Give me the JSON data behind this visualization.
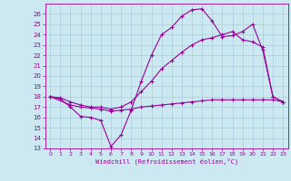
{
  "xlabel": "Windchill (Refroidissement éolien,°C)",
  "background_color": "#cce8f0",
  "grid_color": "#aaccdd",
  "line_color": "#990099",
  "xlim": [
    -0.5,
    23.5
  ],
  "ylim": [
    13,
    27
  ],
  "xticks": [
    0,
    1,
    2,
    3,
    4,
    5,
    6,
    7,
    8,
    9,
    10,
    11,
    12,
    13,
    14,
    15,
    16,
    17,
    18,
    19,
    20,
    21,
    22,
    23
  ],
  "yticks": [
    13,
    14,
    15,
    16,
    17,
    18,
    19,
    20,
    21,
    22,
    23,
    24,
    25,
    26
  ],
  "series1_x": [
    0,
    1,
    2,
    3,
    4,
    5,
    6,
    7,
    8,
    9,
    10,
    11,
    12,
    13,
    14,
    15,
    16,
    17,
    18,
    19,
    20,
    21,
    22,
    23
  ],
  "series1_y": [
    18.0,
    17.8,
    17.0,
    16.1,
    16.0,
    15.7,
    13.2,
    14.3,
    16.7,
    19.5,
    22.0,
    24.0,
    24.7,
    25.8,
    26.4,
    26.5,
    25.3,
    23.8,
    23.9,
    24.3,
    25.0,
    22.5,
    18.0,
    17.5
  ],
  "series2_x": [
    0,
    2,
    3,
    4,
    5,
    6,
    7,
    8,
    9,
    10,
    11,
    12,
    13,
    14,
    15,
    16,
    17,
    18,
    19,
    20,
    21,
    22,
    23
  ],
  "series2_y": [
    18.0,
    17.2,
    17.0,
    16.9,
    16.8,
    16.6,
    16.7,
    16.8,
    17.0,
    17.1,
    17.2,
    17.3,
    17.4,
    17.5,
    17.6,
    17.7,
    17.7,
    17.7,
    17.7,
    17.7,
    17.7,
    17.7,
    17.5
  ],
  "series3_x": [
    0,
    1,
    2,
    3,
    4,
    5,
    6,
    7,
    8,
    9,
    10,
    11,
    12,
    13,
    14,
    15,
    16,
    17,
    18,
    19,
    20,
    21,
    22,
    23
  ],
  "series3_y": [
    18.0,
    17.9,
    17.5,
    17.2,
    17.0,
    17.0,
    16.8,
    17.0,
    17.5,
    18.5,
    19.5,
    20.7,
    21.5,
    22.3,
    23.0,
    23.5,
    23.7,
    24.0,
    24.3,
    23.5,
    23.3,
    22.8,
    18.0,
    17.5
  ]
}
